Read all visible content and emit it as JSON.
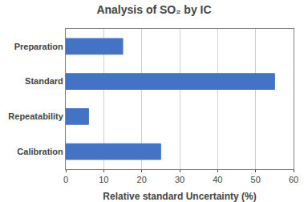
{
  "chart_data": {
    "type": "bar",
    "orientation": "horizontal",
    "title": "Analysis of SO₂ by IC",
    "categories": [
      "Calibration",
      "Repeatability",
      "Standard",
      "Preparation"
    ],
    "values": [
      25,
      6,
      55,
      15
    ],
    "color": "#4472C4",
    "xlabel": "Relative standard Uncertainty (%)",
    "xlim": [
      0,
      60
    ],
    "xticks": [
      0,
      10,
      20,
      30,
      40,
      50,
      60
    ],
    "grid": true
  }
}
